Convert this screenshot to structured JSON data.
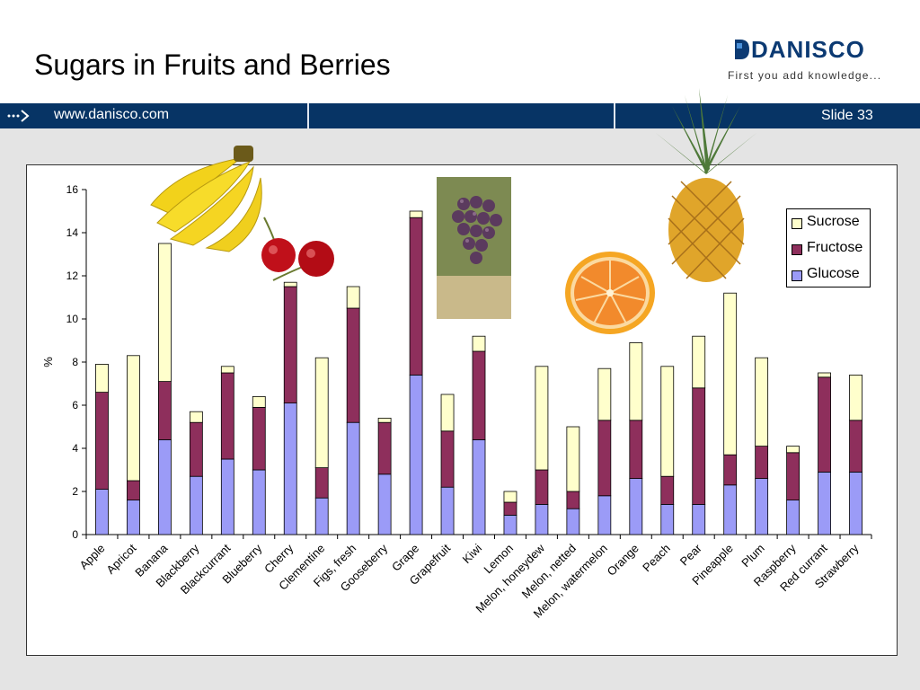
{
  "slide": {
    "title": "Sugars in Fruits and Berries",
    "url": "www.danisco.com",
    "slide_number": "Slide 33"
  },
  "logo": {
    "name": "DANISCO",
    "tagline": "First you add knowledge..."
  },
  "colors": {
    "header_bar": "#073465",
    "glucose": "#9b9bf7",
    "fructose": "#8e2f5c",
    "sucrose": "#ffffcc"
  },
  "chart_data": {
    "type": "bar",
    "stacked": true,
    "ylabel": "%",
    "xlabel": "",
    "ylim": [
      0,
      16
    ],
    "yticks": [
      0,
      2,
      4,
      6,
      8,
      10,
      12,
      14,
      16
    ],
    "grid": false,
    "legend_position": "top-right",
    "categories": [
      "Apple",
      "Apricot",
      "Banana",
      "Blackberry",
      "Blackcurrant",
      "Blueberry",
      "Cherry",
      "Clementine",
      "Figs, fresh",
      "Gooseberry",
      "Grape",
      "Grapefruit",
      "Kiwi",
      "Lemon",
      "Melon, honeydew",
      "Melon, netted",
      "Melon, watermelon",
      "Orange",
      "Peach",
      "Pear",
      "Pineapple",
      "Plum",
      "Raspberry",
      "Red currant",
      "Strawberry"
    ],
    "series": [
      {
        "name": "Glucose",
        "color": "#9b9bf7",
        "values": [
          2.1,
          1.6,
          4.4,
          2.7,
          3.5,
          3.0,
          6.1,
          1.7,
          5.2,
          2.8,
          7.4,
          2.2,
          4.4,
          0.9,
          1.4,
          1.2,
          1.8,
          2.6,
          1.4,
          1.4,
          2.3,
          2.6,
          1.6,
          2.9,
          2.9
        ]
      },
      {
        "name": "Fructose",
        "color": "#8e2f5c",
        "values": [
          4.5,
          0.9,
          2.7,
          2.5,
          4.0,
          2.9,
          5.4,
          1.4,
          5.3,
          2.4,
          7.3,
          2.6,
          4.1,
          0.6,
          1.6,
          0.8,
          3.5,
          2.7,
          1.3,
          5.4,
          1.4,
          1.5,
          2.2,
          4.4,
          2.4
        ]
      },
      {
        "name": "Sucrose",
        "color": "#ffffcc",
        "values": [
          1.3,
          5.8,
          6.4,
          0.5,
          0.3,
          0.5,
          0.2,
          5.1,
          1.0,
          0.2,
          0.3,
          1.7,
          0.7,
          0.5,
          4.8,
          3.0,
          2.4,
          3.6,
          5.1,
          2.4,
          7.5,
          4.1,
          0.3,
          0.2,
          2.1
        ]
      }
    ]
  },
  "decorations": [
    "banana-image",
    "cherries-image",
    "grapes-image",
    "grapefruit-image",
    "pineapple-image"
  ]
}
